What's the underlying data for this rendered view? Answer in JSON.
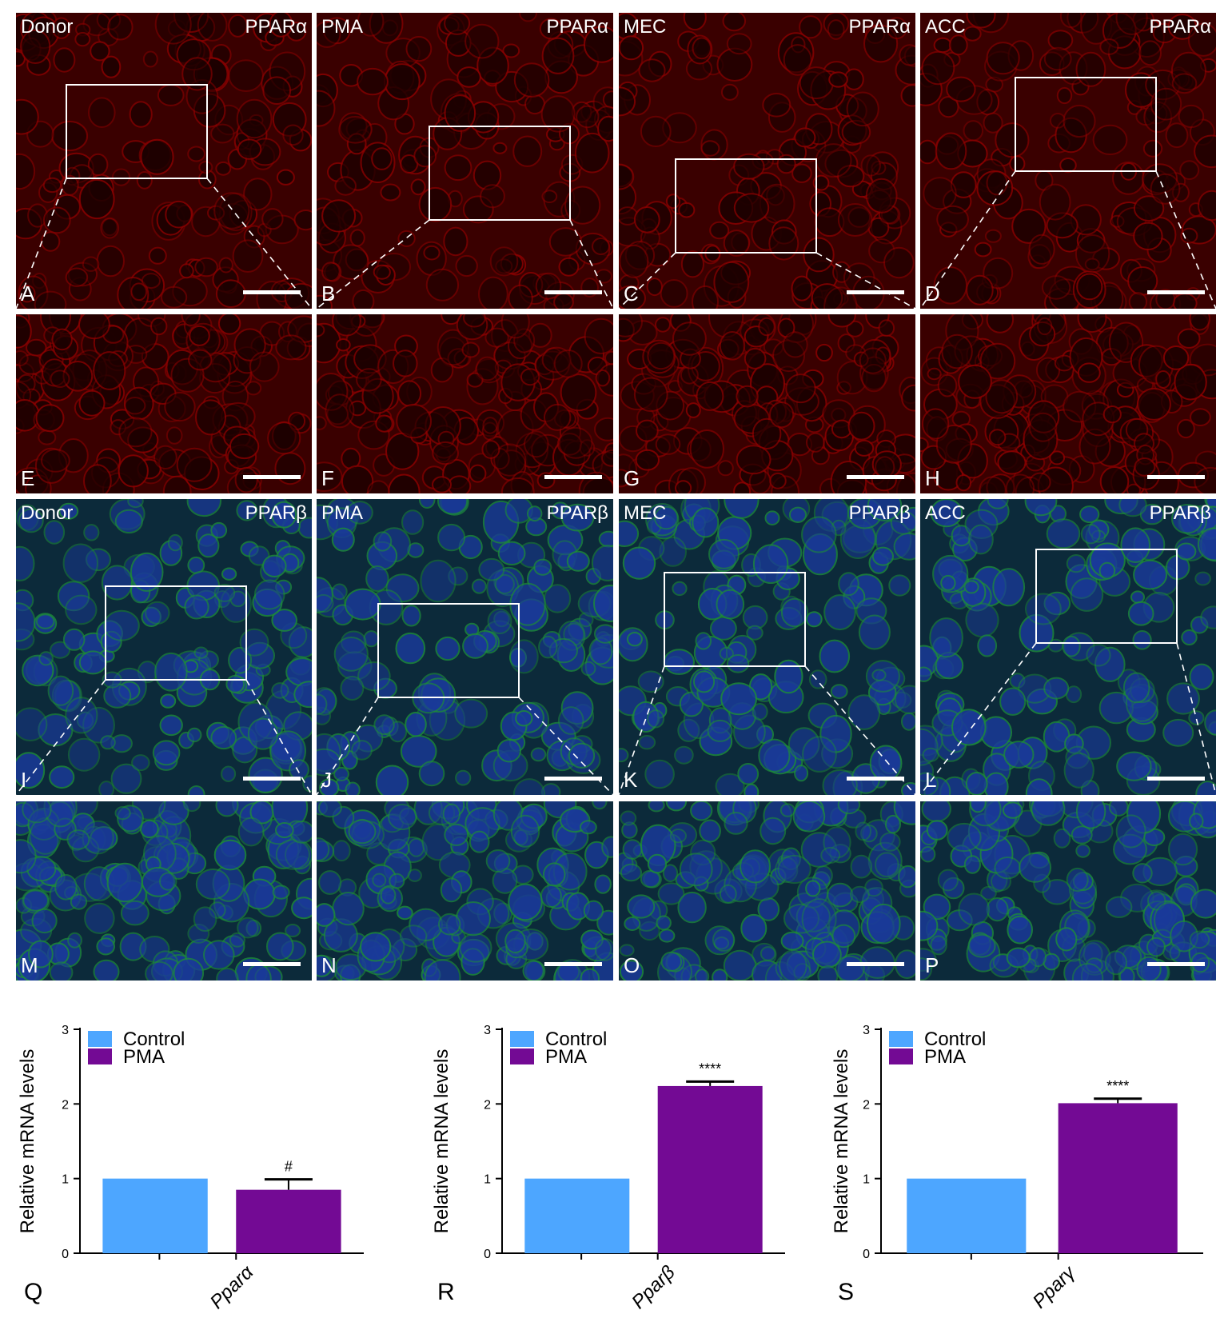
{
  "panels": [
    {
      "letter": "A",
      "group": "Donor",
      "marker": "PPARα",
      "scale": true
    },
    {
      "letter": "B",
      "group": "PMA",
      "marker": "PPARα",
      "scale": true
    },
    {
      "letter": "C",
      "group": "MEC",
      "marker": "PPARα",
      "scale": true
    },
    {
      "letter": "D",
      "group": "ACC",
      "marker": "PPARα",
      "scale": true
    },
    {
      "letter": "E",
      "group": "",
      "marker": "",
      "scale": true
    },
    {
      "letter": "F",
      "group": "",
      "marker": "",
      "scale": true
    },
    {
      "letter": "G",
      "group": "",
      "marker": "",
      "scale": true
    },
    {
      "letter": "H",
      "group": "",
      "marker": "",
      "scale": true
    },
    {
      "letter": "I",
      "group": "Donor",
      "marker": "PPARβ",
      "scale": true
    },
    {
      "letter": "J",
      "group": "PMA",
      "marker": "PPARβ",
      "scale": true
    },
    {
      "letter": "K",
      "group": "MEC",
      "marker": "PPARβ",
      "scale": true
    },
    {
      "letter": "L",
      "group": "ACC",
      "marker": "PPARβ",
      "scale": true
    },
    {
      "letter": "M",
      "group": "",
      "marker": "",
      "scale": true
    },
    {
      "letter": "N",
      "group": "",
      "marker": "",
      "scale": true
    },
    {
      "letter": "O",
      "group": "",
      "marker": "",
      "scale": true
    },
    {
      "letter": "P",
      "group": "",
      "marker": "",
      "scale": true
    }
  ],
  "colors": {
    "control": "#4da6ff",
    "pma": "#730a94",
    "red_stain": "#8a0000",
    "green_stain": "#1d8a3c",
    "blue_stain": "#1a3a9a"
  },
  "chart_data": [
    {
      "type": "bar",
      "panel_letter": "Q",
      "categories": [
        "Pparα"
      ],
      "series": [
        {
          "name": "Control",
          "values": [
            1.0
          ]
        },
        {
          "name": "PMA",
          "values": [
            0.85
          ],
          "error": [
            0.14
          ]
        }
      ],
      "annotation": "#",
      "ylabel": "Relative mRNA levels",
      "ylim": [
        0,
        3
      ],
      "yticks": [
        "0",
        "1",
        "2",
        "3"
      ],
      "legend": "top-left"
    },
    {
      "type": "bar",
      "panel_letter": "R",
      "categories": [
        "Pparβ"
      ],
      "series": [
        {
          "name": "Control",
          "values": [
            1.0
          ]
        },
        {
          "name": "PMA",
          "values": [
            2.24
          ],
          "error": [
            0.06
          ]
        }
      ],
      "annotation": "****",
      "ylabel": "Relative mRNA levels",
      "ylim": [
        0,
        3
      ],
      "yticks": [
        "0",
        "1",
        "2",
        "3"
      ],
      "legend": "top-left"
    },
    {
      "type": "bar",
      "panel_letter": "S",
      "categories": [
        "Pparγ"
      ],
      "series": [
        {
          "name": "Control",
          "values": [
            1.0
          ]
        },
        {
          "name": "PMA",
          "values": [
            2.01
          ],
          "error": [
            0.06
          ]
        }
      ],
      "annotation": "****",
      "ylabel": "Relative mRNA levels",
      "ylim": [
        0,
        3
      ],
      "yticks": [
        "0",
        "1",
        "2",
        "3"
      ],
      "legend": "top-left"
    }
  ]
}
